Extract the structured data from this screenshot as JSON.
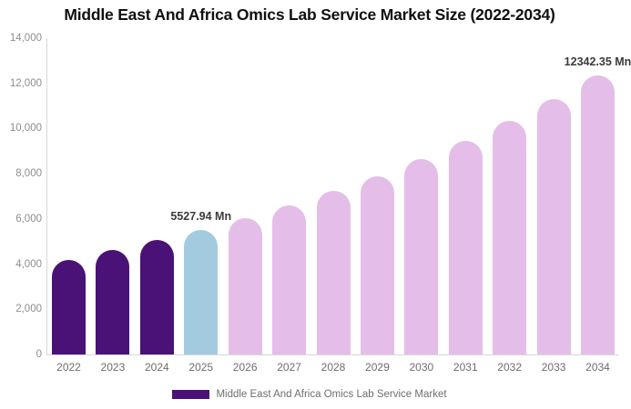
{
  "title": "Middle East And Africa Omics Lab Service Market Size (2022-2034)",
  "legend": {
    "label": "Middle East And Africa Omics Lab Service Market",
    "swatch_color": "#4A1277"
  },
  "chart_data": {
    "type": "bar",
    "title": "Middle East And Africa Omics Lab Service Market Size (2022-2034)",
    "unit": "Mn",
    "categories": [
      "2022",
      "2023",
      "2024",
      "2025",
      "2026",
      "2027",
      "2028",
      "2029",
      "2030",
      "2031",
      "2032",
      "2033",
      "2034"
    ],
    "values": [
      4200,
      4620,
      5050,
      5527.94,
      6040,
      6610,
      7230,
      7900,
      8640,
      9440,
      10330,
      11290,
      12342.35
    ],
    "bar_colors": [
      "#4A1277",
      "#4A1277",
      "#4A1277",
      "#A3CBE0",
      "#E4BEE8",
      "#E4BEE8",
      "#E4BEE8",
      "#E4BEE8",
      "#E4BEE8",
      "#E4BEE8",
      "#E4BEE8",
      "#E4BEE8",
      "#E4BEE8"
    ],
    "colors": {
      "historical": "#4A1277",
      "base_year": "#A3CBE0",
      "forecast": "#E4BEE8",
      "axis_line": "#d8d8d8"
    },
    "annotations": [
      {
        "category": "2025",
        "text": "5527.94 Mn"
      },
      {
        "category": "2034",
        "text": "12342.35 Mn"
      }
    ],
    "ylim": [
      0,
      14000
    ],
    "yticks": [
      {
        "value": 14000,
        "label": "14,000"
      },
      {
        "value": 12000,
        "label": "12,000"
      },
      {
        "value": 10000,
        "label": "10,000"
      },
      {
        "value": 8000,
        "label": "8,000"
      },
      {
        "value": 6000,
        "label": "6,000"
      },
      {
        "value": 4000,
        "label": "4,000"
      },
      {
        "value": 2000,
        "label": "2,000"
      },
      {
        "value": 0,
        "label": "0"
      }
    ],
    "xlabel": "",
    "ylabel": "",
    "grid": "off",
    "legend_position": "bottom",
    "legend_entries": [
      "Middle East And Africa Omics Lab Service Market"
    ]
  }
}
